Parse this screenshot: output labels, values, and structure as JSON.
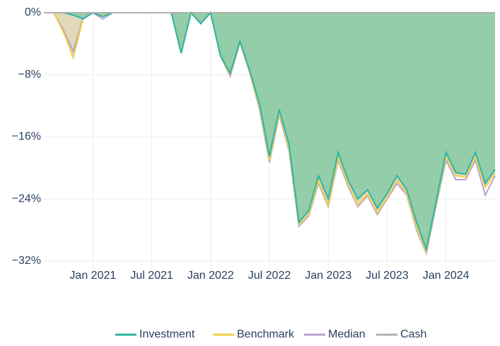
{
  "chart_data": {
    "type": "area",
    "x": [
      "2020-08",
      "2020-09",
      "2020-10",
      "2020-11",
      "2020-12",
      "2021-01",
      "2021-02",
      "2021-03",
      "2021-04",
      "2021-05",
      "2021-06",
      "2021-07",
      "2021-08",
      "2021-09",
      "2021-10",
      "2021-11",
      "2021-12",
      "2022-01",
      "2022-02",
      "2022-03",
      "2022-04",
      "2022-05",
      "2022-06",
      "2022-07",
      "2022-08",
      "2022-09",
      "2022-10",
      "2022-11",
      "2022-12",
      "2023-01",
      "2023-02",
      "2023-03",
      "2023-04",
      "2023-05",
      "2023-06",
      "2023-07",
      "2023-08",
      "2023-09",
      "2023-10",
      "2023-11",
      "2023-12",
      "2024-01",
      "2024-02",
      "2024-03",
      "2024-04",
      "2024-05",
      "2024-06"
    ],
    "series": [
      {
        "name": "Investment",
        "color": "#2bb5a5",
        "fill": "#8fcca8",
        "values": [
          0,
          0,
          0,
          -0.3,
          -0.8,
          0,
          -0.5,
          0,
          0,
          0,
          0,
          0,
          0,
          0,
          -5.2,
          0,
          -1.4,
          0,
          -5.5,
          -7.8,
          -3.7,
          -7.5,
          -11.8,
          -18.5,
          -12.5,
          -17,
          -27,
          -25.5,
          -21,
          -24,
          -18,
          -21.5,
          -24,
          -22.8,
          -25.2,
          -23.3,
          -21,
          -22.8,
          -27,
          -30.5,
          -24.3,
          -18,
          -20.6,
          -20.8,
          -18,
          -22,
          -20.2
        ]
      },
      {
        "name": "Benchmark",
        "color": "#f2d04a",
        "fill": "#d9d0a6",
        "values": [
          0,
          0,
          -2.5,
          -5.8,
          -0.8,
          0,
          -0.4,
          0,
          0,
          0,
          0,
          0,
          0,
          0,
          -5.2,
          0,
          -1.4,
          0,
          -5.6,
          -8,
          -3.8,
          -7.7,
          -12.2,
          -19,
          -13,
          -17.5,
          -27.3,
          -26,
          -21.7,
          -24.8,
          -18.7,
          -22,
          -24.8,
          -23.4,
          -25.8,
          -23.8,
          -21.6,
          -23.3,
          -27.7,
          -30.8,
          -24.6,
          -18.6,
          -21,
          -21.2,
          -18.6,
          -22.5,
          -20.7
        ]
      },
      {
        "name": "Median",
        "color": "#b9a3d6",
        "values": [
          0,
          0,
          -2.2,
          -5,
          -0.6,
          0,
          -0.8,
          0,
          0,
          0,
          0,
          0,
          0,
          0,
          -5.2,
          0,
          -1.4,
          0,
          -5.6,
          -8.2,
          -3.8,
          -7.8,
          -12.5,
          -19.3,
          -13.2,
          -17.8,
          -27.5,
          -26.2,
          -22,
          -25,
          -19,
          -22.3,
          -25,
          -23.6,
          -26,
          -24,
          -22,
          -23.5,
          -28,
          -31,
          -24.8,
          -19,
          -21.5,
          -21.5,
          -19,
          -23.5,
          -21
        ]
      },
      {
        "name": "Cash",
        "color": "#b0b0b0",
        "values": [
          0,
          0,
          0,
          0,
          0,
          0,
          0,
          0,
          0,
          0,
          0,
          0,
          0,
          0,
          0,
          0,
          0,
          0,
          0,
          0,
          0,
          0,
          0,
          0,
          0,
          0,
          0,
          0,
          0,
          0,
          0,
          0,
          0,
          0,
          0,
          0,
          0,
          0,
          0,
          0,
          0,
          0,
          0,
          0,
          0,
          0,
          0
        ]
      }
    ],
    "xlim": [
      "2020-08",
      "2024-06"
    ],
    "xticks": [
      {
        "value": "2021-01",
        "label": "Jan 2021"
      },
      {
        "value": "2021-07",
        "label": "Jul 2021"
      },
      {
        "value": "2022-01",
        "label": "Jan 2022"
      },
      {
        "value": "2022-07",
        "label": "Jul 2022"
      },
      {
        "value": "2023-01",
        "label": "Jan 2023"
      },
      {
        "value": "2023-07",
        "label": "Jul 2023"
      },
      {
        "value": "2024-01",
        "label": "Jan 2024"
      }
    ],
    "ylim": [
      -33,
      0
    ],
    "yticks": [
      {
        "value": 0,
        "label": "0%"
      },
      {
        "value": -8,
        "label": "−8%"
      },
      {
        "value": -16,
        "label": "−16%"
      },
      {
        "value": -24,
        "label": "−24%"
      },
      {
        "value": -32,
        "label": "−32%"
      }
    ],
    "grid": true,
    "legend": "bottom"
  }
}
